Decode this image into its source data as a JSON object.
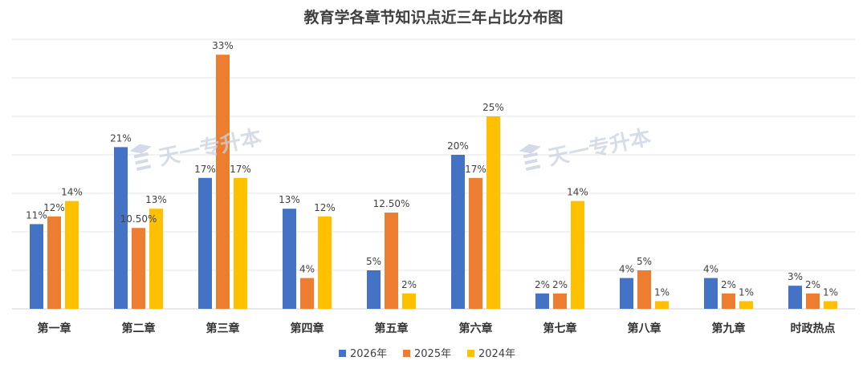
{
  "chart_data": {
    "type": "bar",
    "title": "教育学各章节知识点近三年占比分布图",
    "categories": [
      "第一章",
      "第二章",
      "第三章",
      "第四章",
      "第五章",
      "第六章",
      "第七章",
      "第八章",
      "第九章",
      "时政热点"
    ],
    "ylim": [
      0,
      35
    ],
    "grid": true,
    "legend_position": "bottom",
    "series": [
      {
        "name": "2026年",
        "color": "#4472C4",
        "values": [
          11,
          21,
          17,
          13,
          5,
          20,
          2,
          4,
          4,
          3
        ],
        "labels": [
          "11%",
          "21%",
          "17%",
          "13%",
          "5%",
          "20%",
          "2%",
          "4%",
          "4%",
          "3%"
        ]
      },
      {
        "name": "2025年",
        "color": "#ED7D31",
        "values": [
          12,
          10.5,
          33,
          4,
          12.5,
          17,
          2,
          5,
          2,
          2
        ],
        "labels": [
          "12%",
          "10.50%",
          "33%",
          "4%",
          "12.50%",
          "17%",
          "2%",
          "5%",
          "2%",
          "2%"
        ]
      },
      {
        "name": "2024年",
        "color": "#FFC000",
        "values": [
          14,
          13,
          17,
          12,
          2,
          25,
          14,
          1,
          1,
          1
        ],
        "labels": [
          "14%",
          "13%",
          "17%",
          "12%",
          "2%",
          "25%",
          "14%",
          "1%",
          "1%",
          "1%"
        ]
      }
    ]
  },
  "watermark": {
    "text": "天一专升本",
    "icon": "graduation-cap-logo-icon"
  }
}
